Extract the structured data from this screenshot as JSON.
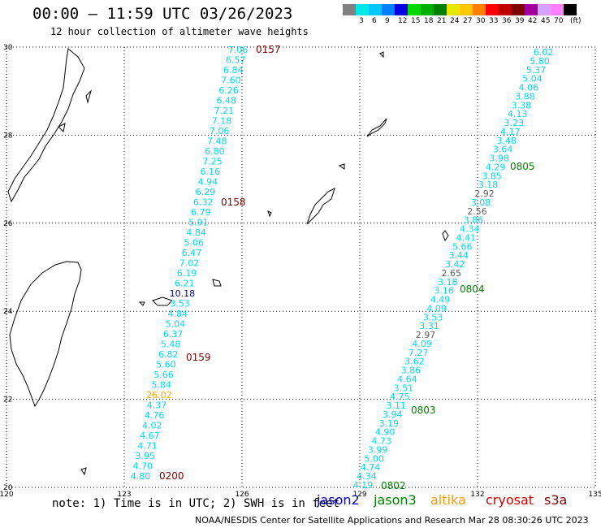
{
  "header": {
    "title": "00:00 – 11:59 UTC 03/26/2023",
    "subtitle": "12 hour collection of altimeter wave heights"
  },
  "legend": {
    "unit": "(ft)",
    "swatches": [
      {
        "label": "",
        "color": "#808080"
      },
      {
        "label": "3",
        "color": "#00e8e8"
      },
      {
        "label": "6",
        "color": "#00c8ff"
      },
      {
        "label": "9",
        "color": "#0080ff"
      },
      {
        "label": "12",
        "color": "#0000e0"
      },
      {
        "label": "15",
        "color": "#00d800"
      },
      {
        "label": "18",
        "color": "#00b000"
      },
      {
        "label": "21",
        "color": "#008000"
      },
      {
        "label": "24",
        "color": "#e8e800"
      },
      {
        "label": "27",
        "color": "#ffc800"
      },
      {
        "label": "30",
        "color": "#ff8000"
      },
      {
        "label": "33",
        "color": "#ff0000"
      },
      {
        "label": "36",
        "color": "#c00000"
      },
      {
        "label": "39",
        "color": "#800000"
      },
      {
        "label": "42",
        "color": "#a000a0"
      },
      {
        "label": "45",
        "color": "#d8a0ff"
      },
      {
        "label": "70",
        "color": "#ff80ff"
      },
      {
        "label": "",
        "color": "#000000"
      }
    ]
  },
  "axes": {
    "lon_labels": [
      "120",
      "123",
      "126",
      "129",
      "132",
      "135"
    ],
    "lat_labels": [
      "30",
      "28",
      "26",
      "24",
      "22",
      "20"
    ]
  },
  "colors": {
    "cyan": "#00d8f0",
    "time_red": "#800000",
    "time_green": "#008000",
    "dark": "#000080",
    "orange": "#ffa500",
    "gray": "#606060"
  },
  "track_west": [
    {
      "text": "7.06",
      "c": "cyan"
    },
    {
      "text": "6.57",
      "c": "cyan"
    },
    {
      "text": "6.84",
      "c": "cyan"
    },
    {
      "text": "7.60",
      "c": "cyan"
    },
    {
      "text": "6.26",
      "c": "cyan"
    },
    {
      "text": "6.48",
      "c": "cyan"
    },
    {
      "text": "7.21",
      "c": "cyan"
    },
    {
      "text": "7.18",
      "c": "cyan"
    },
    {
      "text": "7.06",
      "c": "cyan"
    },
    {
      "text": "7.48",
      "c": "cyan"
    },
    {
      "text": "6.80",
      "c": "cyan"
    },
    {
      "text": "7.25",
      "c": "cyan"
    },
    {
      "text": "6.16",
      "c": "cyan"
    },
    {
      "text": "4.94",
      "c": "cyan"
    },
    {
      "text": "6.29",
      "c": "cyan"
    },
    {
      "text": "6.32",
      "c": "cyan"
    },
    {
      "text": "6.79",
      "c": "cyan"
    },
    {
      "text": "5.91",
      "c": "cyan"
    },
    {
      "text": "4.84",
      "c": "cyan"
    },
    {
      "text": "5.06",
      "c": "cyan"
    },
    {
      "text": "6.47",
      "c": "cyan"
    },
    {
      "text": "7.02",
      "c": "cyan"
    },
    {
      "text": "6.19",
      "c": "cyan"
    },
    {
      "text": "6.21",
      "c": "cyan"
    },
    {
      "text": "10.18",
      "c": "dark"
    },
    {
      "text": "3.53",
      "c": "cyan"
    },
    {
      "text": "4.84",
      "c": "cyan"
    },
    {
      "text": "5.04",
      "c": "cyan"
    },
    {
      "text": "6.37",
      "c": "cyan"
    },
    {
      "text": "5.48",
      "c": "cyan"
    },
    {
      "text": "6.82",
      "c": "cyan"
    },
    {
      "text": "5.60",
      "c": "cyan"
    },
    {
      "text": "5.66",
      "c": "cyan"
    },
    {
      "text": "5.84",
      "c": "cyan"
    },
    {
      "text": "26.02",
      "c": "orange"
    },
    {
      "text": "4.37",
      "c": "cyan"
    },
    {
      "text": "4.76",
      "c": "cyan"
    },
    {
      "text": "4.02",
      "c": "cyan"
    },
    {
      "text": "4.67",
      "c": "cyan"
    },
    {
      "text": "4.71",
      "c": "cyan"
    },
    {
      "text": "3.95",
      "c": "cyan"
    },
    {
      "text": "4.70",
      "c": "cyan"
    },
    {
      "text": "4.80",
      "c": "cyan"
    }
  ],
  "track_east": [
    {
      "text": "6.02",
      "c": "cyan"
    },
    {
      "text": "5.80",
      "c": "cyan"
    },
    {
      "text": "5.37",
      "c": "cyan"
    },
    {
      "text": "5.04",
      "c": "cyan"
    },
    {
      "text": "4.06",
      "c": "cyan"
    },
    {
      "text": "3.88",
      "c": "cyan"
    },
    {
      "text": "3.38",
      "c": "cyan"
    },
    {
      "text": "4.13",
      "c": "cyan"
    },
    {
      "text": "3.23",
      "c": "cyan"
    },
    {
      "text": "4.17",
      "c": "cyan"
    },
    {
      "text": "3.48",
      "c": "cyan"
    },
    {
      "text": "3.64",
      "c": "cyan"
    },
    {
      "text": "3.98",
      "c": "cyan"
    },
    {
      "text": "4.29",
      "c": "cyan"
    },
    {
      "text": "3.85",
      "c": "cyan"
    },
    {
      "text": "3.18",
      "c": "cyan"
    },
    {
      "text": "2.92",
      "c": "gray"
    },
    {
      "text": "3.08",
      "c": "cyan"
    },
    {
      "text": "2.56",
      "c": "gray"
    },
    {
      "text": "3.86",
      "c": "cyan"
    },
    {
      "text": "4.34",
      "c": "cyan"
    },
    {
      "text": "4.41",
      "c": "cyan"
    },
    {
      "text": "5.66",
      "c": "cyan"
    },
    {
      "text": "3.44",
      "c": "cyan"
    },
    {
      "text": "3.42",
      "c": "cyan"
    },
    {
      "text": "2.65",
      "c": "gray"
    },
    {
      "text": "3.18",
      "c": "cyan"
    },
    {
      "text": "3.16",
      "c": "cyan"
    },
    {
      "text": "4.49",
      "c": "cyan"
    },
    {
      "text": "4.09",
      "c": "cyan"
    },
    {
      "text": "3.53",
      "c": "cyan"
    },
    {
      "text": "3.31",
      "c": "cyan"
    },
    {
      "text": "2.97",
      "c": "gray"
    },
    {
      "text": "4.09",
      "c": "cyan"
    },
    {
      "text": "7.27",
      "c": "cyan"
    },
    {
      "text": "3.62",
      "c": "cyan"
    },
    {
      "text": "3.86",
      "c": "cyan"
    },
    {
      "text": "4.64",
      "c": "cyan"
    },
    {
      "text": "3.51",
      "c": "cyan"
    },
    {
      "text": "4.75",
      "c": "cyan"
    },
    {
      "text": "3.11",
      "c": "cyan"
    },
    {
      "text": "3.94",
      "c": "cyan"
    },
    {
      "text": "3.19",
      "c": "cyan"
    },
    {
      "text": "4.90",
      "c": "cyan"
    },
    {
      "text": "4.73",
      "c": "cyan"
    },
    {
      "text": "3.99",
      "c": "cyan"
    },
    {
      "text": "5.00",
      "c": "cyan"
    },
    {
      "text": "4.74",
      "c": "cyan"
    },
    {
      "text": "4.34",
      "c": "cyan"
    },
    {
      "text": "4.19",
      "c": "cyan"
    }
  ],
  "time_labels_west": [
    "0157",
    "0158",
    "0159",
    "0200"
  ],
  "time_labels_east": [
    "0805",
    "0804",
    "0803",
    "0802"
  ],
  "footer": {
    "note": "note:  1) Time is in UTC;  2) SWH is in feet",
    "satellites": [
      {
        "name": "jason2",
        "color": "#0000c0"
      },
      {
        "name": "jason3",
        "color": "#008000"
      },
      {
        "name": "altika",
        "color": "#ff9900"
      },
      {
        "name": "cryosat",
        "color": "#d00000"
      },
      {
        "name": "s3a",
        "color": "#800000"
      }
    ],
    "credit": "NOAA/NESDIS Center for Satellite Applications and Research    Mar 28 08:30:26 UTC 2023"
  }
}
